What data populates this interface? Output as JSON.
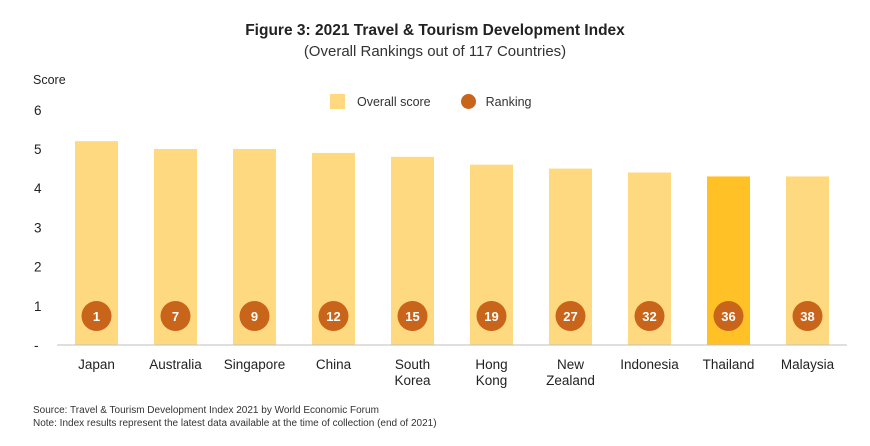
{
  "chart_data": {
    "type": "bar",
    "title": "Figure 3: 2021 Travel & Tourism Development Index",
    "subtitle": "(Overall Rankings out of 117 Countries)",
    "ylabel": "Score",
    "xlabel": "",
    "ylim": [
      0,
      6
    ],
    "yticks": [
      "-",
      "1",
      "2",
      "3",
      "4",
      "5",
      "6"
    ],
    "categories": [
      [
        "Japan"
      ],
      [
        "Australia"
      ],
      [
        "Singapore"
      ],
      [
        "China"
      ],
      [
        "South",
        "Korea"
      ],
      [
        "Hong",
        "Kong"
      ],
      [
        "New",
        "Zealand"
      ],
      [
        "Indonesia"
      ],
      [
        "Thailand"
      ],
      [
        "Malaysia"
      ]
    ],
    "series": [
      {
        "name": "Overall score",
        "values": [
          5.2,
          5.0,
          5.0,
          4.9,
          4.8,
          4.6,
          4.5,
          4.4,
          4.3,
          4.3
        ]
      },
      {
        "name": "Ranking",
        "values": [
          1,
          7,
          9,
          12,
          15,
          19,
          27,
          32,
          36,
          38
        ]
      }
    ],
    "highlight_category": "Thailand",
    "colors": {
      "bar": "#FFD97F",
      "highlight_bar": "#FFC125",
      "ranking_dot": "#C8651B",
      "dot_text": "#ffffff"
    },
    "legend": {
      "position": "top-center",
      "items": [
        "Overall score",
        "Ranking"
      ]
    },
    "grid": false
  },
  "notes": {
    "source": "Source: Travel & Tourism Development Index 2021 by World Economic Forum",
    "note": "Note: Index results represent the latest data available at the time of collection (end of 2021)"
  }
}
